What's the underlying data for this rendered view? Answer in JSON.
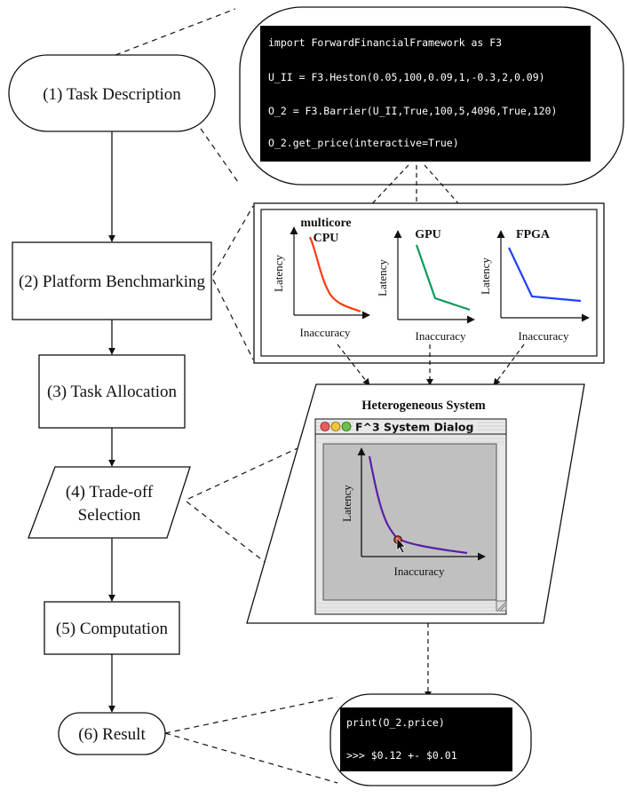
{
  "flow_steps": [
    {
      "label": "(1) Task Description"
    },
    {
      "label": "(2) Platform Benchmarking"
    },
    {
      "label": "(3) Task Allocation"
    },
    {
      "label": "(4) Trade-off",
      "label2": "Selection"
    },
    {
      "label": "(5) Computation"
    },
    {
      "label": "(6) Result"
    }
  ],
  "code_top": {
    "lines": [
      "import ForwardFinancialFramework as F3",
      "U_II = F3.Heston(0.05,100,0.09,1,-0.3,2,0.09)",
      "O_2 = F3.Barrier(U_II,True,100,5,4096,True,120)",
      "O_2.get_price(interactive=True)"
    ]
  },
  "benchmark_charts": [
    {
      "title": "multicore",
      "title2": "CPU",
      "xlabel": "Inaccuracy",
      "ylabel": "Latency",
      "color": "#ff3b10"
    },
    {
      "title": "GPU",
      "xlabel": "Inaccuracy",
      "ylabel": "Latency",
      "color": "#0f9a5a"
    },
    {
      "title": "FPGA",
      "xlabel": "Inaccuracy",
      "ylabel": "Latency",
      "color": "#1f3fff"
    }
  ],
  "hetero": {
    "title": "Heterogeneous System",
    "dialog_title": "F^3 System Dialog",
    "xlabel": "Inaccuracy",
    "ylabel": "Latency",
    "curve_color": "#5a1fa8",
    "marker_color": "#e0402a",
    "pane_color": "#c0c0c0"
  },
  "code_bottom": {
    "lines": [
      "print(O_2.price)",
      ">>> $0.12 +- $0.01"
    ]
  },
  "colors": {
    "line": "#111111",
    "code_bg": "#000000",
    "code_fg": "#ffffff"
  }
}
